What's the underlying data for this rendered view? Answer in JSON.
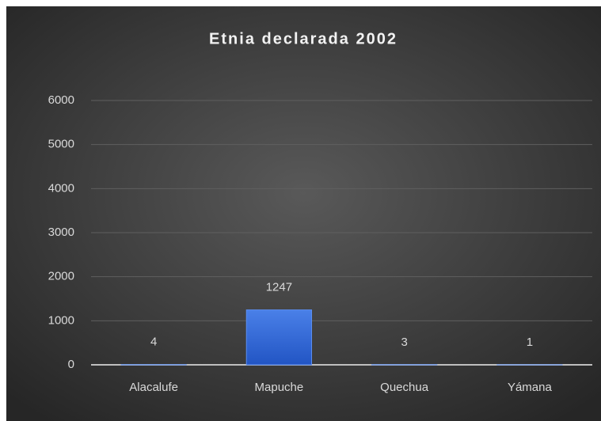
{
  "chart_data": {
    "type": "bar",
    "title": "Etnia declarada 2002",
    "categories": [
      "Alacalufe",
      "Mapuche",
      "Quechua",
      "Yámana"
    ],
    "values": [
      4,
      1247,
      3,
      1
    ],
    "color": "#3a6fd8",
    "ylim": [
      0,
      6000
    ],
    "yticks": [
      0,
      1000,
      2000,
      3000,
      4000,
      5000,
      6000
    ],
    "grid": true
  }
}
